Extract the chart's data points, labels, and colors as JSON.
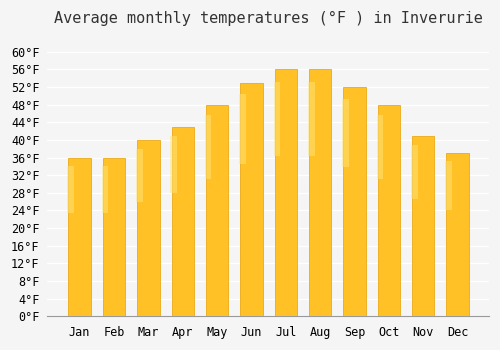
{
  "title": "Average monthly temperatures (°F ) in Inverurie",
  "months": [
    "Jan",
    "Feb",
    "Mar",
    "Apr",
    "May",
    "Jun",
    "Jul",
    "Aug",
    "Sep",
    "Oct",
    "Nov",
    "Dec"
  ],
  "values": [
    36,
    36,
    40,
    43,
    48,
    53,
    56,
    56,
    52,
    48,
    41,
    37
  ],
  "bar_color_top": "#FFC125",
  "bar_color_bottom": "#FFB200",
  "ylim": [
    0,
    64
  ],
  "yticks": [
    0,
    4,
    8,
    12,
    16,
    20,
    24,
    28,
    32,
    36,
    40,
    44,
    48,
    52,
    56,
    60
  ],
  "ytick_labels": [
    "0°F",
    "4°F",
    "8°F",
    "12°F",
    "16°F",
    "20°F",
    "24°F",
    "28°F",
    "32°F",
    "36°F",
    "40°F",
    "44°F",
    "48°F",
    "52°F",
    "56°F",
    "60°F"
  ],
  "background_color": "#f5f5f5",
  "grid_color": "#ffffff",
  "title_fontsize": 11,
  "tick_fontsize": 8.5,
  "bar_edge_color": "#E8A000",
  "bar_gradient_bottom": "#FFD966",
  "bar_width": 0.65
}
